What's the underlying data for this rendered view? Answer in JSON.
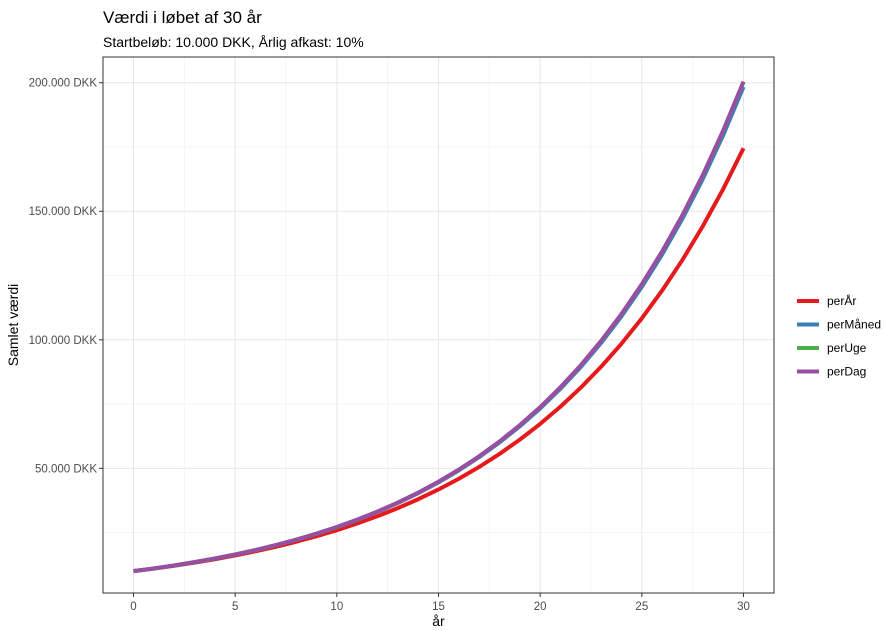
{
  "chart_data": {
    "type": "line",
    "title": "Værdi i løbet af 30 år",
    "subtitle": "Startbeløb: 10.000 DKK, Årlig afkast: 10%",
    "xlabel": "år",
    "ylabel": "Samlet værdi",
    "xlim": [
      -1.5,
      31.5
    ],
    "ylim": [
      1500,
      210000
    ],
    "x_ticks": [
      0,
      5,
      10,
      15,
      20,
      25,
      30
    ],
    "x_tick_labels": [
      "0",
      "5",
      "10",
      "15",
      "20",
      "25",
      "30"
    ],
    "y_ticks": [
      50000,
      100000,
      150000,
      200000
    ],
    "y_tick_labels": [
      "50.000 DKK",
      "100.000 DKK",
      "150.000 DKK",
      "200.000 DKK"
    ],
    "grid": true,
    "legend_position": "right",
    "x": [
      0,
      1,
      2,
      3,
      4,
      5,
      6,
      7,
      8,
      9,
      10,
      11,
      12,
      13,
      14,
      15,
      16,
      17,
      18,
      19,
      20,
      21,
      22,
      23,
      24,
      25,
      26,
      27,
      28,
      29,
      30
    ],
    "series": [
      {
        "name": "perÅr",
        "color": "#e41a1c",
        "values": [
          10000,
          11000,
          12100,
          13310,
          14641,
          16105,
          17716,
          19487,
          21436,
          23579,
          25937,
          28531,
          31384,
          34523,
          37975,
          41772,
          45950,
          50545,
          55599,
          61159,
          67275,
          74002,
          81403,
          89543,
          98497,
          108347,
          119182,
          131100,
          144210,
          158631,
          174494
        ]
      },
      {
        "name": "perMåned",
        "color": "#377eb8",
        "values": [
          10000,
          11047,
          12204,
          13482,
          14894,
          16453,
          18176,
          20079,
          22182,
          24504,
          27070,
          29905,
          33036,
          36496,
          40317,
          44539,
          49203,
          54355,
          60047,
          66334,
          73281,
          80954,
          89431,
          98806,
          109151,
          120580,
          133207,
          147155,
          162564,
          179586,
          198392
        ]
      },
      {
        "name": "perUge",
        "color": "#4daf4a",
        "values": [
          10000,
          11051,
          12212,
          13495,
          14913,
          16480,
          18211,
          20124,
          22238,
          24575,
          27156,
          30009,
          33162,
          36645,
          40495,
          44749,
          49450,
          54645,
          60386,
          66730,
          73741,
          81488,
          90048,
          99508,
          109962,
          121514,
          134280,
          148387,
          163975,
          181202,
          200238
        ]
      },
      {
        "name": "perDag",
        "color": "#984ea3",
        "values": [
          10000,
          11052,
          12214,
          13498,
          14917,
          16485,
          18218,
          20132,
          22248,
          24586,
          27169,
          30024,
          33181,
          36667,
          40522,
          44779,
          49485,
          54686,
          60432,
          66782,
          73800,
          81554,
          90124,
          99594,
          110059,
          121624,
          134404,
          148527,
          164133,
          181380,
          200440
        ]
      }
    ]
  }
}
